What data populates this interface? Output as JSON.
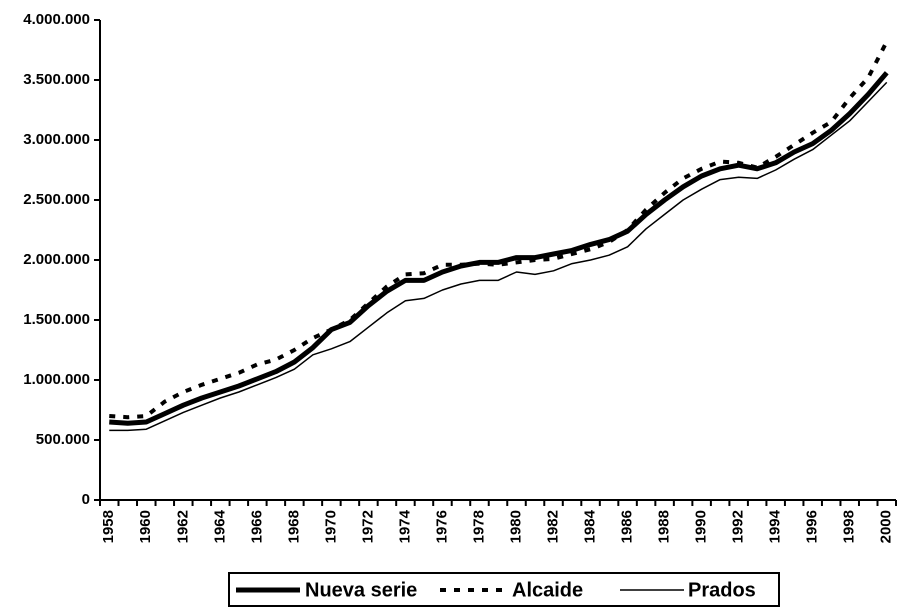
{
  "chart_data": {
    "type": "line",
    "categories": [
      1958,
      null,
      1960,
      null,
      1962,
      null,
      1964,
      null,
      1966,
      null,
      1968,
      null,
      1970,
      null,
      1972,
      null,
      1974,
      null,
      1976,
      null,
      1978,
      null,
      1980,
      null,
      1982,
      null,
      1984,
      null,
      1986,
      null,
      1988,
      null,
      1990,
      null,
      1992,
      null,
      1994,
      null,
      1996,
      null,
      1998,
      null,
      2000
    ],
    "series": [
      {
        "name": "Nueva serie",
        "color": "#000000",
        "line_style": "solid",
        "line_width": 5,
        "values": [
          650000,
          640000,
          650000,
          720000,
          790000,
          850000,
          900000,
          950000,
          1010000,
          1070000,
          1150000,
          1270000,
          1420000,
          1480000,
          1620000,
          1740000,
          1830000,
          1830000,
          1900000,
          1950000,
          1980000,
          1980000,
          2020000,
          2020000,
          2050000,
          2080000,
          2130000,
          2170000,
          2240000,
          2380000,
          2500000,
          2610000,
          2700000,
          2760000,
          2790000,
          2760000,
          2810000,
          2900000,
          2970000,
          3080000,
          3220000,
          3380000,
          3560000
        ]
      },
      {
        "name": "Alcaide",
        "color": "#000000",
        "line_style": "dashed",
        "line_width": 4,
        "values": [
          700000,
          690000,
          700000,
          820000,
          900000,
          960000,
          1010000,
          1060000,
          1130000,
          1170000,
          1250000,
          1350000,
          1420000,
          1500000,
          1640000,
          1780000,
          1880000,
          1890000,
          1960000,
          1960000,
          1970000,
          1960000,
          1980000,
          2000000,
          2010000,
          2050000,
          2090000,
          2150000,
          2250000,
          2420000,
          2560000,
          2680000,
          2760000,
          2820000,
          2810000,
          2770000,
          2860000,
          2960000,
          3060000,
          3150000,
          3350000,
          3520000,
          3820000
        ]
      },
      {
        "name": "Prados",
        "color": "#000000",
        "line_style": "solid",
        "line_width": 1.5,
        "values": [
          580000,
          580000,
          590000,
          660000,
          730000,
          790000,
          850000,
          900000,
          960000,
          1020000,
          1090000,
          1210000,
          1260000,
          1320000,
          1440000,
          1560000,
          1660000,
          1680000,
          1750000,
          1800000,
          1830000,
          1830000,
          1900000,
          1880000,
          1910000,
          1970000,
          2000000,
          2040000,
          2110000,
          2260000,
          2380000,
          2500000,
          2590000,
          2670000,
          2690000,
          2680000,
          2750000,
          2840000,
          2920000,
          3040000,
          3160000,
          3320000,
          3480000
        ]
      }
    ],
    "ylim": [
      0,
      4000000
    ],
    "yticks": [
      0,
      {
        "value": 500000,
        "label": "500.000"
      },
      {
        "value": 1000000,
        "label": "1.000.000"
      },
      {
        "value": 1500000,
        "label": "1.500.000"
      },
      {
        "value": 2000000,
        "label": "2.000.000"
      },
      {
        "value": 2500000,
        "label": "2.500.000"
      },
      {
        "value": 3000000,
        "label": "3.000.000"
      },
      {
        "value": 3500000,
        "label": "3.500.000"
      },
      {
        "value": 4000000,
        "label": "4.000.000"
      }
    ],
    "grid": false,
    "legend_position": "bottom"
  }
}
